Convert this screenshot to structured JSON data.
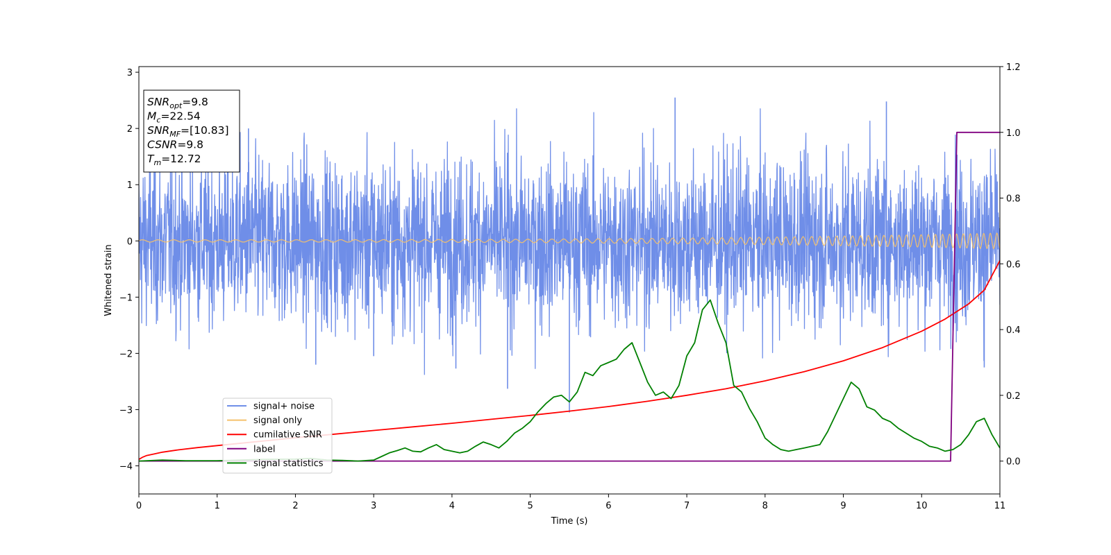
{
  "chart_data": {
    "type": "line",
    "xlabel": "Time (s)",
    "ylabel": "Whitened strain",
    "xlim": [
      0,
      11
    ],
    "ylim_left": [
      -4.5,
      3.1
    ],
    "ylim_right": [
      -0.1,
      1.2
    ],
    "x_ticks": [
      "0",
      "1",
      "2",
      "3",
      "4",
      "5",
      "6",
      "7",
      "8",
      "9",
      "10",
      "11"
    ],
    "y_ticks_left": [
      "−4",
      "−3",
      "−2",
      "−1",
      "0",
      "1",
      "2",
      "3"
    ],
    "y_ticks_right": [
      "0.0",
      "0.2",
      "0.4",
      "0.6",
      "0.8",
      "1.0",
      "1.2"
    ],
    "grid": false,
    "legend_position": "lower-left",
    "annotation": {
      "lines": [
        {
          "sym": "SNR",
          "sub": "opt",
          "value": "=9.8"
        },
        {
          "sym": "M",
          "sub": "c",
          "value": "=22.54"
        },
        {
          "sym": "SNR",
          "sub": "MF",
          "value": "=[10.83]"
        },
        {
          "sym": "CSNR",
          "sub": "",
          "value": "=9.8"
        },
        {
          "sym": "T",
          "sub": "m",
          "value": "=12.72"
        }
      ]
    },
    "series": [
      {
        "name": "signal+ noise",
        "axis": "left",
        "color": "#6f8ee8",
        "kind": "noise",
        "description_values": {
          "std": 0.75,
          "spike_peaks": [
            2.55,
            2.48,
            -2.63,
            -3.05,
            -2.25,
            -2.2
          ],
          "x_range": [
            0,
            11
          ]
        }
      },
      {
        "name": "signal only",
        "axis": "left",
        "color": "#f5c16a",
        "kind": "chirp",
        "description_values": {
          "amplitude_start": 0.02,
          "amplitude_end": 0.14,
          "freq_start": 5,
          "freq_end": 12
        }
      },
      {
        "name": "cumilative SNR",
        "axis": "right",
        "color": "#ff0000",
        "x": [
          0,
          0.05,
          0.1,
          0.2,
          0.3,
          0.5,
          0.75,
          1,
          1.5,
          2,
          2.5,
          3,
          3.5,
          4,
          4.5,
          5,
          5.5,
          6,
          6.5,
          7,
          7.5,
          8,
          8.5,
          9,
          9.5,
          10,
          10.3,
          10.6,
          10.8,
          11
        ],
        "y": [
          0.005,
          0.012,
          0.017,
          0.022,
          0.027,
          0.034,
          0.041,
          0.047,
          0.059,
          0.071,
          0.082,
          0.093,
          0.104,
          0.115,
          0.127,
          0.139,
          0.152,
          0.166,
          0.182,
          0.2,
          0.22,
          0.244,
          0.272,
          0.305,
          0.345,
          0.395,
          0.432,
          0.478,
          0.52,
          0.61
        ]
      },
      {
        "name": "label",
        "axis": "right",
        "color": "#800080",
        "x": [
          0,
          10.37,
          10.45,
          11
        ],
        "y": [
          0.0,
          0.0,
          1.0,
          1.0
        ]
      },
      {
        "name": "signal statistics",
        "axis": "right",
        "color": "#008000",
        "x": [
          0,
          0.3,
          0.6,
          1,
          1.3,
          1.6,
          2,
          2.2,
          2.4,
          2.6,
          2.8,
          3,
          3.1,
          3.2,
          3.3,
          3.4,
          3.5,
          3.6,
          3.7,
          3.8,
          3.9,
          4,
          4.1,
          4.2,
          4.3,
          4.4,
          4.5,
          4.6,
          4.7,
          4.8,
          4.9,
          5,
          5.1,
          5.2,
          5.3,
          5.4,
          5.5,
          5.6,
          5.7,
          5.8,
          5.9,
          6,
          6.1,
          6.2,
          6.3,
          6.4,
          6.5,
          6.6,
          6.7,
          6.8,
          6.9,
          7,
          7.1,
          7.2,
          7.3,
          7.4,
          7.5,
          7.6,
          7.7,
          7.8,
          7.9,
          8,
          8.1,
          8.2,
          8.3,
          8.4,
          8.5,
          8.6,
          8.7,
          8.8,
          8.9,
          9,
          9.1,
          9.2,
          9.3,
          9.4,
          9.5,
          9.6,
          9.7,
          9.8,
          9.9,
          10,
          10.1,
          10.2,
          10.3,
          10.4,
          10.5,
          10.6,
          10.7,
          10.8,
          10.9,
          11
        ],
        "y": [
          0.0,
          0.003,
          0.001,
          0.001,
          0.003,
          0.005,
          0.006,
          0.008,
          0.003,
          0.002,
          0.0,
          0.003,
          0.014,
          0.025,
          0.032,
          0.04,
          0.03,
          0.028,
          0.04,
          0.05,
          0.035,
          0.03,
          0.025,
          0.03,
          0.045,
          0.058,
          0.05,
          0.04,
          0.06,
          0.085,
          0.1,
          0.12,
          0.15,
          0.175,
          0.195,
          0.2,
          0.18,
          0.21,
          0.27,
          0.26,
          0.29,
          0.3,
          0.31,
          0.34,
          0.36,
          0.3,
          0.24,
          0.2,
          0.21,
          0.19,
          0.23,
          0.32,
          0.36,
          0.46,
          0.49,
          0.42,
          0.36,
          0.23,
          0.21,
          0.16,
          0.12,
          0.07,
          0.05,
          0.035,
          0.03,
          0.035,
          0.04,
          0.045,
          0.05,
          0.09,
          0.14,
          0.19,
          0.24,
          0.22,
          0.165,
          0.155,
          0.13,
          0.12,
          0.1,
          0.085,
          0.07,
          0.06,
          0.045,
          0.04,
          0.03,
          0.035,
          0.05,
          0.08,
          0.12,
          0.13,
          0.08,
          0.04
        ]
      }
    ]
  }
}
